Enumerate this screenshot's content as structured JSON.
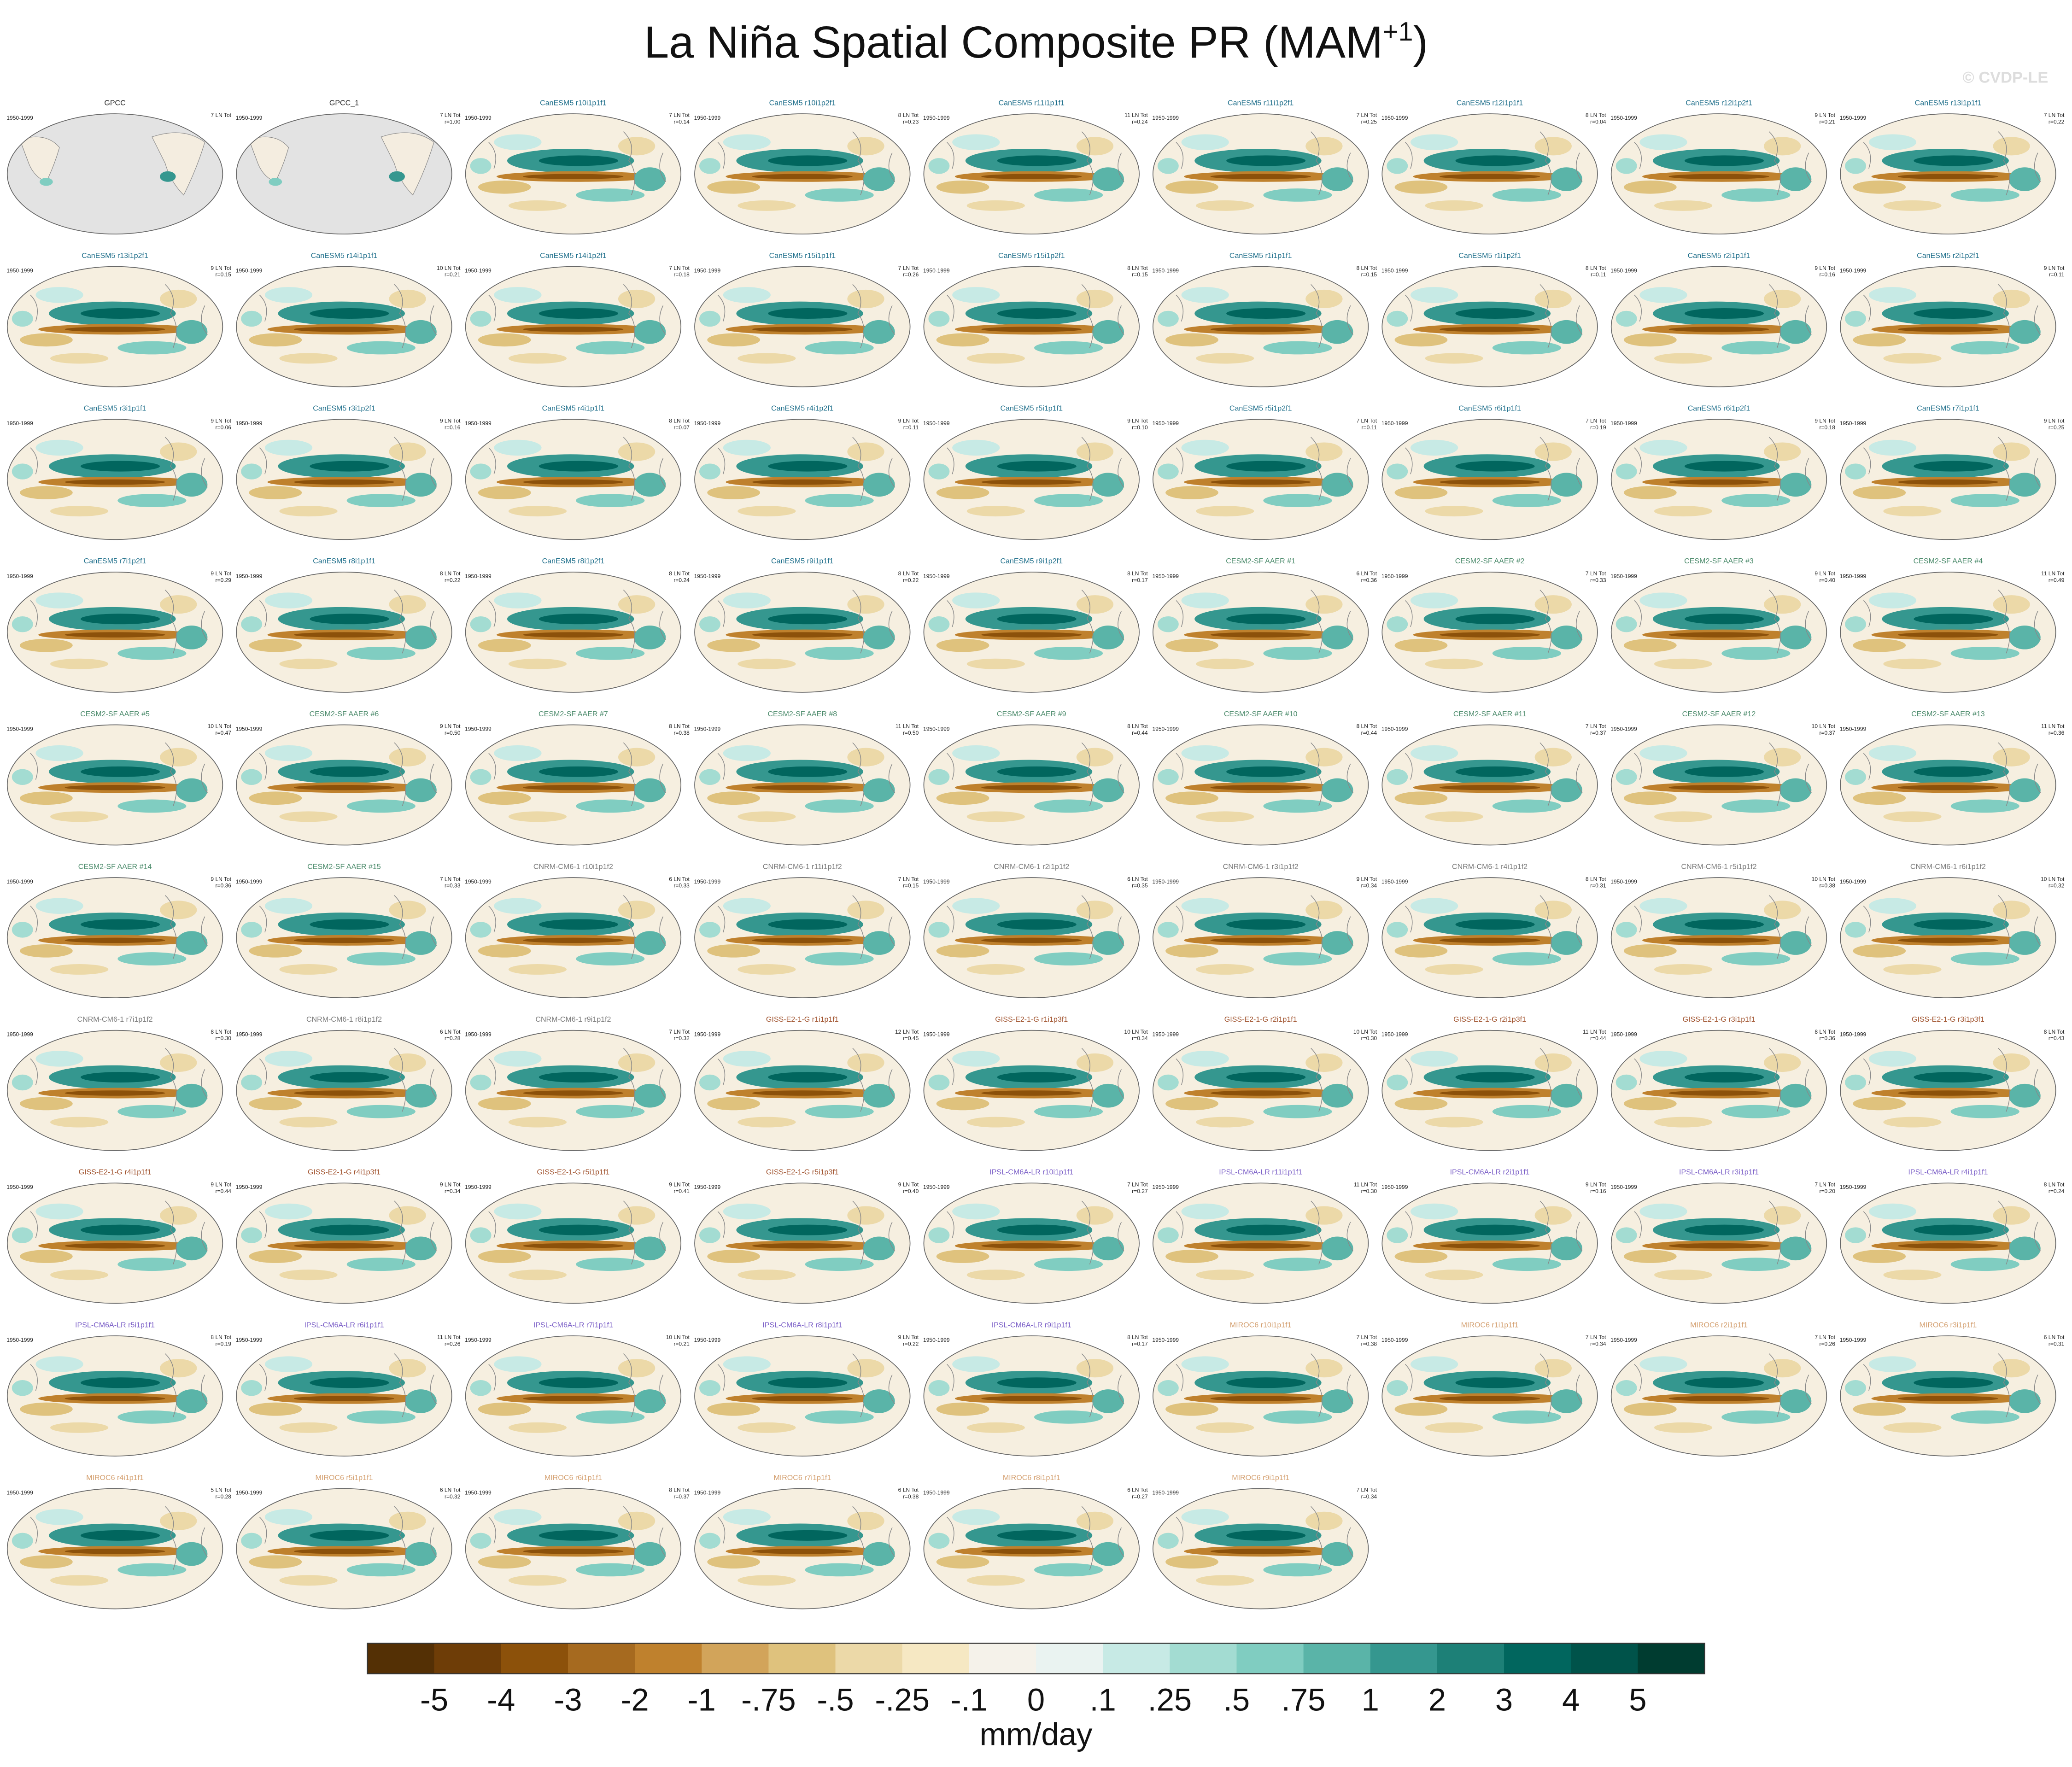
{
  "header": {
    "title": "La Niña Spatial Composite PR (MAM",
    "title_sup": "+1",
    "title_end": ")",
    "watermark": "© CVDP-LE",
    "period": "1950-1999"
  },
  "groups": [
    {
      "color": "#222222",
      "panels": [
        {
          "title": "GPCC",
          "count": "7 LN Tot",
          "r": null
        },
        {
          "title": "GPCC_1",
          "count": "7 LN Tot",
          "r": "r=1.00"
        }
      ]
    },
    {
      "color": "#1f6f8b",
      "panels": [
        {
          "title": "CanESM5 r10i1p1f1",
          "count": "7 LN Tot",
          "r": "r=0.14"
        },
        {
          "title": "CanESM5 r10i1p2f1",
          "count": "8 LN Tot",
          "r": "r=0.23"
        },
        {
          "title": "CanESM5 r11i1p1f1",
          "count": "11 LN Tot",
          "r": "r=0.24"
        },
        {
          "title": "CanESM5 r11i1p2f1",
          "count": "7 LN Tot",
          "r": "r=0.25"
        },
        {
          "title": "CanESM5 r12i1p1f1",
          "count": "8 LN Tot",
          "r": "r=0.04"
        },
        {
          "title": "CanESM5 r12i1p2f1",
          "count": "9 LN Tot",
          "r": "r=0.21"
        },
        {
          "title": "CanESM5 r13i1p1f1",
          "count": "7 LN Tot",
          "r": "r=0.22"
        },
        {
          "title": "CanESM5 r13i1p2f1",
          "count": "9 LN Tot",
          "r": "r=0.15"
        },
        {
          "title": "CanESM5 r14i1p1f1",
          "count": "10 LN Tot",
          "r": "r=0.21"
        },
        {
          "title": "CanESM5 r14i1p2f1",
          "count": "7 LN Tot",
          "r": "r=0.18"
        },
        {
          "title": "CanESM5 r15i1p1f1",
          "count": "7 LN Tot",
          "r": "r=0.26"
        },
        {
          "title": "CanESM5 r15i1p2f1",
          "count": "8 LN Tot",
          "r": "r=0.15"
        },
        {
          "title": "CanESM5 r1i1p1f1",
          "count": "8 LN Tot",
          "r": "r=0.15"
        },
        {
          "title": "CanESM5 r1i1p2f1",
          "count": "8 LN Tot",
          "r": "r=0.11"
        },
        {
          "title": "CanESM5 r2i1p1f1",
          "count": "9 LN Tot",
          "r": "r=0.16"
        },
        {
          "title": "CanESM5 r2i1p2f1",
          "count": "9 LN Tot",
          "r": "r=0.11"
        },
        {
          "title": "CanESM5 r3i1p1f1",
          "count": "9 LN Tot",
          "r": "r=0.06"
        },
        {
          "title": "CanESM5 r3i1p2f1",
          "count": "9 LN Tot",
          "r": "r=0.16"
        },
        {
          "title": "CanESM5 r4i1p1f1",
          "count": "8 LN Tot",
          "r": "r=0.07"
        },
        {
          "title": "CanESM5 r4i1p2f1",
          "count": "9 LN Tot",
          "r": "r=0.11"
        },
        {
          "title": "CanESM5 r5i1p1f1",
          "count": "9 LN Tot",
          "r": "r=0.10"
        },
        {
          "title": "CanESM5 r5i1p2f1",
          "count": "7 LN Tot",
          "r": "r=0.11"
        },
        {
          "title": "CanESM5 r6i1p1f1",
          "count": "7 LN Tot",
          "r": "r=0.19"
        },
        {
          "title": "CanESM5 r6i1p2f1",
          "count": "9 LN Tot",
          "r": "r=0.18"
        },
        {
          "title": "CanESM5 r7i1p1f1",
          "count": "9 LN Tot",
          "r": "r=0.25"
        },
        {
          "title": "CanESM5 r7i1p2f1",
          "count": "9 LN Tot",
          "r": "r=0.29"
        },
        {
          "title": "CanESM5 r8i1p1f1",
          "count": "8 LN Tot",
          "r": "r=0.22"
        },
        {
          "title": "CanESM5 r8i1p2f1",
          "count": "8 LN Tot",
          "r": "r=0.24"
        },
        {
          "title": "CanESM5 r9i1p1f1",
          "count": "8 LN Tot",
          "r": "r=0.22"
        },
        {
          "title": "CanESM5 r9i1p2f1",
          "count": "8 LN Tot",
          "r": "r=0.17"
        }
      ]
    },
    {
      "color": "#4a8a6a",
      "panels": [
        {
          "title": "CESM2-SF AAER #1",
          "count": "6 LN Tot",
          "r": "r=0.36"
        },
        {
          "title": "CESM2-SF AAER #2",
          "count": "7 LN Tot",
          "r": "r=0.33"
        },
        {
          "title": "CESM2-SF AAER #3",
          "count": "9 LN Tot",
          "r": "r=0.40"
        },
        {
          "title": "CESM2-SF AAER #4",
          "count": "11 LN Tot",
          "r": "r=0.49"
        },
        {
          "title": "CESM2-SF AAER #5",
          "count": "10 LN Tot",
          "r": "r=0.47"
        },
        {
          "title": "CESM2-SF AAER #6",
          "count": "9 LN Tot",
          "r": "r=0.50"
        },
        {
          "title": "CESM2-SF AAER #7",
          "count": "8 LN Tot",
          "r": "r=0.38"
        },
        {
          "title": "CESM2-SF AAER #8",
          "count": "11 LN Tot",
          "r": "r=0.50"
        },
        {
          "title": "CESM2-SF AAER #9",
          "count": "8 LN Tot",
          "r": "r=0.44"
        },
        {
          "title": "CESM2-SF AAER #10",
          "count": "8 LN Tot",
          "r": "r=0.44"
        },
        {
          "title": "CESM2-SF AAER #11",
          "count": "7 LN Tot",
          "r": "r=0.37"
        },
        {
          "title": "CESM2-SF AAER #12",
          "count": "10 LN Tot",
          "r": "r=0.37"
        },
        {
          "title": "CESM2-SF AAER #13",
          "count": "11 LN Tot",
          "r": "r=0.36"
        },
        {
          "title": "CESM2-SF AAER #14",
          "count": "9 LN Tot",
          "r": "r=0.36"
        },
        {
          "title": "CESM2-SF AAER #15",
          "count": "7 LN Tot",
          "r": "r=0.33"
        }
      ]
    },
    {
      "color": "#7a7a7a",
      "panels": [
        {
          "title": "CNRM-CM6-1 r10i1p1f2",
          "count": "6 LN Tot",
          "r": "r=0.33"
        },
        {
          "title": "CNRM-CM6-1 r11i1p1f2",
          "count": "7 LN Tot",
          "r": "r=0.15"
        },
        {
          "title": "CNRM-CM6-1 r2i1p1f2",
          "count": "6 LN Tot",
          "r": "r=0.35"
        },
        {
          "title": "CNRM-CM6-1 r3i1p1f2",
          "count": "9 LN Tot",
          "r": "r=0.34"
        },
        {
          "title": "CNRM-CM6-1 r4i1p1f2",
          "count": "8 LN Tot",
          "r": "r=0.31"
        },
        {
          "title": "CNRM-CM6-1 r5i1p1f2",
          "count": "10 LN Tot",
          "r": "r=0.38"
        },
        {
          "title": "CNRM-CM6-1 r6i1p1f2",
          "count": "10 LN Tot",
          "r": "r=0.32"
        },
        {
          "title": "CNRM-CM6-1 r7i1p1f2",
          "count": "8 LN Tot",
          "r": "r=0.30"
        },
        {
          "title": "CNRM-CM6-1 r8i1p1f2",
          "count": "6 LN Tot",
          "r": "r=0.28"
        },
        {
          "title": "CNRM-CM6-1 r9i1p1f2",
          "count": "7 LN Tot",
          "r": "r=0.32"
        }
      ]
    },
    {
      "color": "#a0522d",
      "panels": [
        {
          "title": "GISS-E2-1-G r1i1p1f1",
          "count": "12 LN Tot",
          "r": "r=0.45"
        },
        {
          "title": "GISS-E2-1-G r1i1p3f1",
          "count": "10 LN Tot",
          "r": "r=0.34"
        },
        {
          "title": "GISS-E2-1-G r2i1p1f1",
          "count": "10 LN Tot",
          "r": "r=0.30"
        },
        {
          "title": "GISS-E2-1-G r2i1p3f1",
          "count": "11 LN Tot",
          "r": "r=0.44"
        },
        {
          "title": "GISS-E2-1-G r3i1p1f1",
          "count": "8 LN Tot",
          "r": "r=0.36"
        },
        {
          "title": "GISS-E2-1-G r3i1p3f1",
          "count": "8 LN Tot",
          "r": "r=0.43"
        },
        {
          "title": "GISS-E2-1-G r4i1p1f1",
          "count": "9 LN Tot",
          "r": "r=0.44"
        },
        {
          "title": "GISS-E2-1-G r4i1p3f1",
          "count": "9 LN Tot",
          "r": "r=0.34"
        },
        {
          "title": "GISS-E2-1-G r5i1p1f1",
          "count": "9 LN Tot",
          "r": "r=0.41"
        },
        {
          "title": "GISS-E2-1-G r5i1p3f1",
          "count": "9 LN Tot",
          "r": "r=0.40"
        }
      ]
    },
    {
      "color": "#7b5fc7",
      "panels": [
        {
          "title": "IPSL-CM6A-LR r10i1p1f1",
          "count": "7 LN Tot",
          "r": "r=0.27"
        },
        {
          "title": "IPSL-CM6A-LR r11i1p1f1",
          "count": "11 LN Tot",
          "r": "r=0.30"
        },
        {
          "title": "IPSL-CM6A-LR r2i1p1f1",
          "count": "9 LN Tot",
          "r": "r=0.16"
        },
        {
          "title": "IPSL-CM6A-LR r3i1p1f1",
          "count": "7 LN Tot",
          "r": "r=0.20"
        },
        {
          "title": "IPSL-CM6A-LR r4i1p1f1",
          "count": "8 LN Tot",
          "r": "r=0.24"
        },
        {
          "title": "IPSL-CM6A-LR r5i1p1f1",
          "count": "8 LN Tot",
          "r": "r=0.19"
        },
        {
          "title": "IPSL-CM6A-LR r6i1p1f1",
          "count": "11 LN Tot",
          "r": "r=0.26"
        },
        {
          "title": "IPSL-CM6A-LR r7i1p1f1",
          "count": "10 LN Tot",
          "r": "r=0.21"
        },
        {
          "title": "IPSL-CM6A-LR r8i1p1f1",
          "count": "9 LN Tot",
          "r": "r=0.22"
        },
        {
          "title": "IPSL-CM6A-LR r9i1p1f1",
          "count": "8 LN Tot",
          "r": "r=0.17"
        }
      ]
    },
    {
      "color": "#d4a070",
      "panels": [
        {
          "title": "MIROC6 r10i1p1f1",
          "count": "7 LN Tot",
          "r": "r=0.38"
        },
        {
          "title": "MIROC6 r1i1p1f1",
          "count": "7 LN Tot",
          "r": "r=0.34"
        },
        {
          "title": "MIROC6 r2i1p1f1",
          "count": "7 LN Tot",
          "r": "r=0.26"
        },
        {
          "title": "MIROC6 r3i1p1f1",
          "count": "6 LN Tot",
          "r": "r=0.31"
        },
        {
          "title": "MIROC6 r4i1p1f1",
          "count": "5 LN Tot",
          "r": "r=0.28"
        },
        {
          "title": "MIROC6 r5i1p1f1",
          "count": "6 LN Tot",
          "r": "r=0.32"
        },
        {
          "title": "MIROC6 r6i1p1f1",
          "count": "8 LN Tot",
          "r": "r=0.37"
        },
        {
          "title": "MIROC6 r7i1p1f1",
          "count": "6 LN Tot",
          "r": "r=0.38"
        },
        {
          "title": "MIROC6 r8i1p1f1",
          "count": "6 LN Tot",
          "r": "r=0.27"
        },
        {
          "title": "MIROC6 r9i1p1f1",
          "count": "7 LN Tot",
          "r": "r=0.34"
        }
      ]
    }
  ],
  "colorbar": {
    "colors": [
      "#543005",
      "#6e3d07",
      "#8c510a",
      "#a66a1f",
      "#bf812d",
      "#d2a45a",
      "#dfc27d",
      "#ecd9a8",
      "#f6e8c3",
      "#f5f2ea",
      "#eaf3f1",
      "#c7eae5",
      "#a3dcd2",
      "#80cdc1",
      "#5ab4a8",
      "#35978f",
      "#1d8077",
      "#01665e",
      "#00534a",
      "#003c30"
    ],
    "labels": [
      "-5",
      "-4",
      "-3",
      "-2",
      "-1",
      "-.75",
      "-.5",
      "-.25",
      "-.1",
      "0",
      ".1",
      ".25",
      ".5",
      ".75",
      "1",
      "2",
      "3",
      "4",
      "5"
    ],
    "units": "mm/day"
  }
}
